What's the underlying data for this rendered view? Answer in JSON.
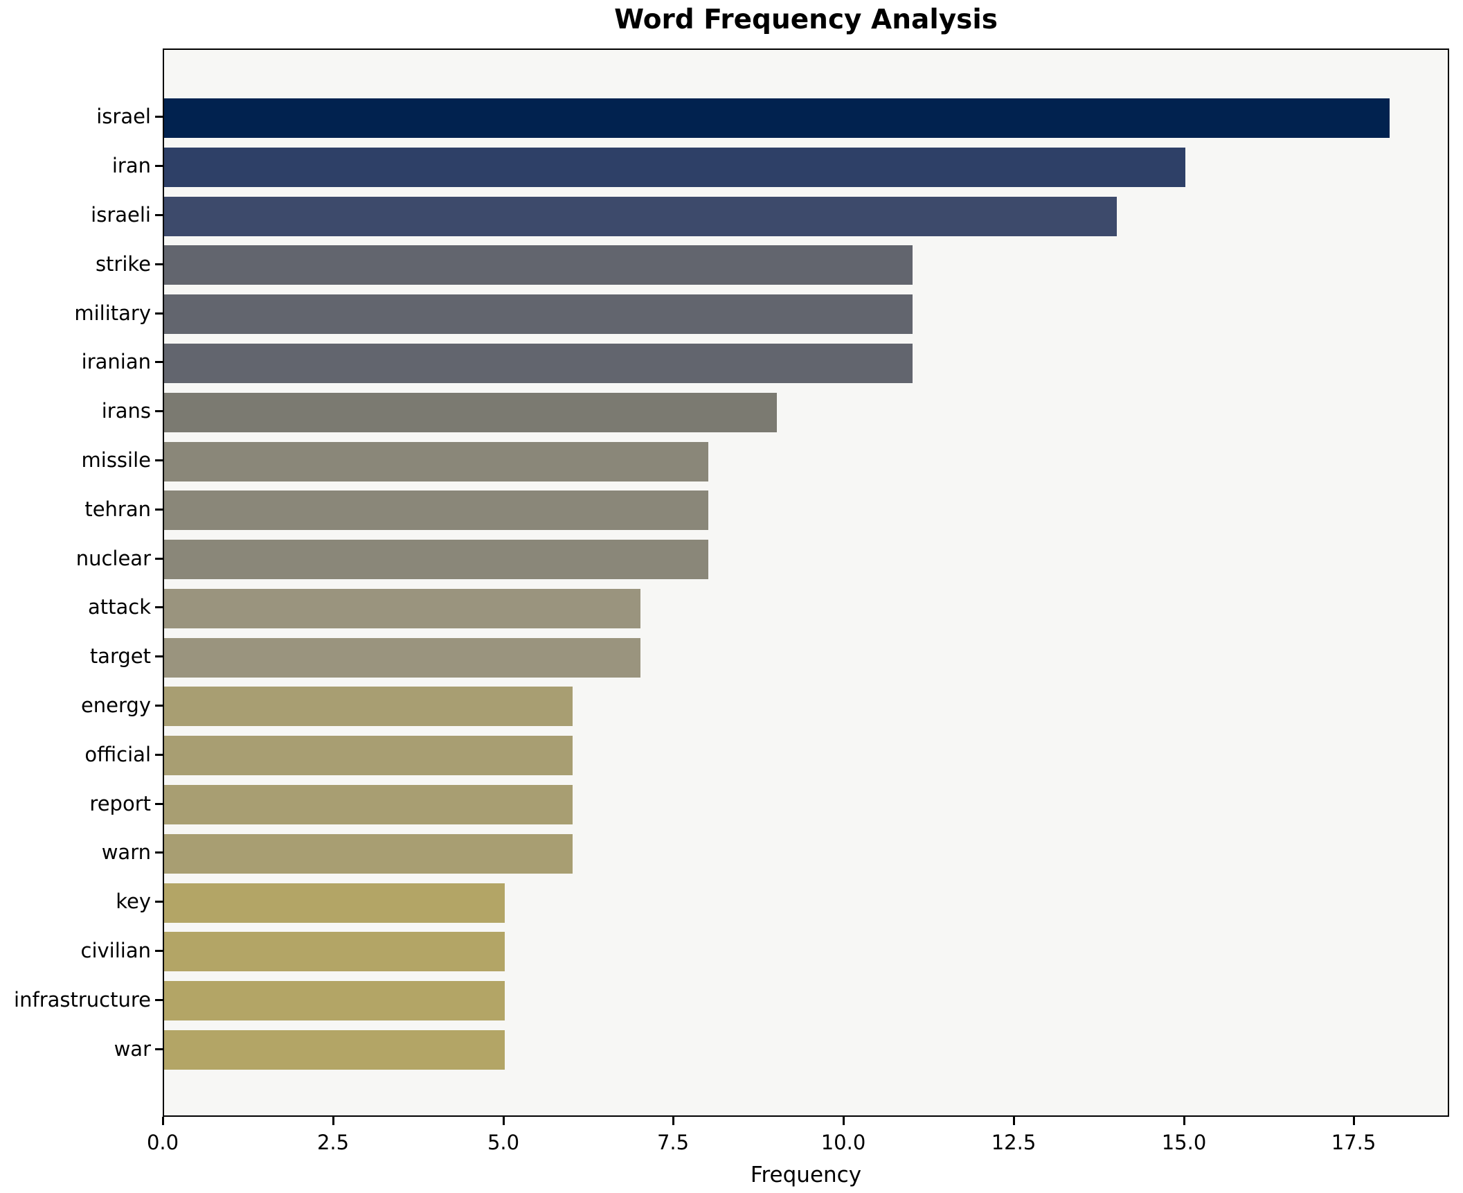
{
  "title": "Word Frequency Analysis",
  "chart_data": {
    "type": "bar",
    "orientation": "horizontal",
    "title": "Word Frequency Analysis",
    "xlabel": "Frequency",
    "ylabel": "",
    "categories": [
      "israel",
      "iran",
      "israeli",
      "strike",
      "military",
      "iranian",
      "irans",
      "missile",
      "tehran",
      "nuclear",
      "attack",
      "target",
      "energy",
      "official",
      "report",
      "warn",
      "key",
      "civilian",
      "infrastructure",
      "war"
    ],
    "values": [
      18,
      15,
      14,
      11,
      11,
      11,
      9,
      8,
      8,
      8,
      7,
      7,
      6,
      6,
      6,
      6,
      5,
      5,
      5,
      5
    ],
    "bar_colors": [
      "#01224f",
      "#2e4067",
      "#3d4a6b",
      "#62656e",
      "#62656e",
      "#62656e",
      "#7b7a71",
      "#8a8779",
      "#8a8779",
      "#8a8779",
      "#9a947e",
      "#9a947e",
      "#a89e72",
      "#a89e72",
      "#a89e72",
      "#a89e72",
      "#b3a566",
      "#b3a566",
      "#b3a566",
      "#b3a566"
    ],
    "x_tick_values": [
      0,
      2.5,
      5,
      7.5,
      10,
      12.5,
      15,
      17.5
    ],
    "x_tick_labels": [
      "0.0",
      "2.5",
      "5.0",
      "7.5",
      "10.0",
      "12.5",
      "15.0",
      "17.5"
    ],
    "xlim": [
      0,
      18.9
    ],
    "grid": false,
    "legend": null,
    "plot_bg": "#f7f7f5",
    "figure_bg": "#ffffff",
    "axis_color": "#000000"
  }
}
